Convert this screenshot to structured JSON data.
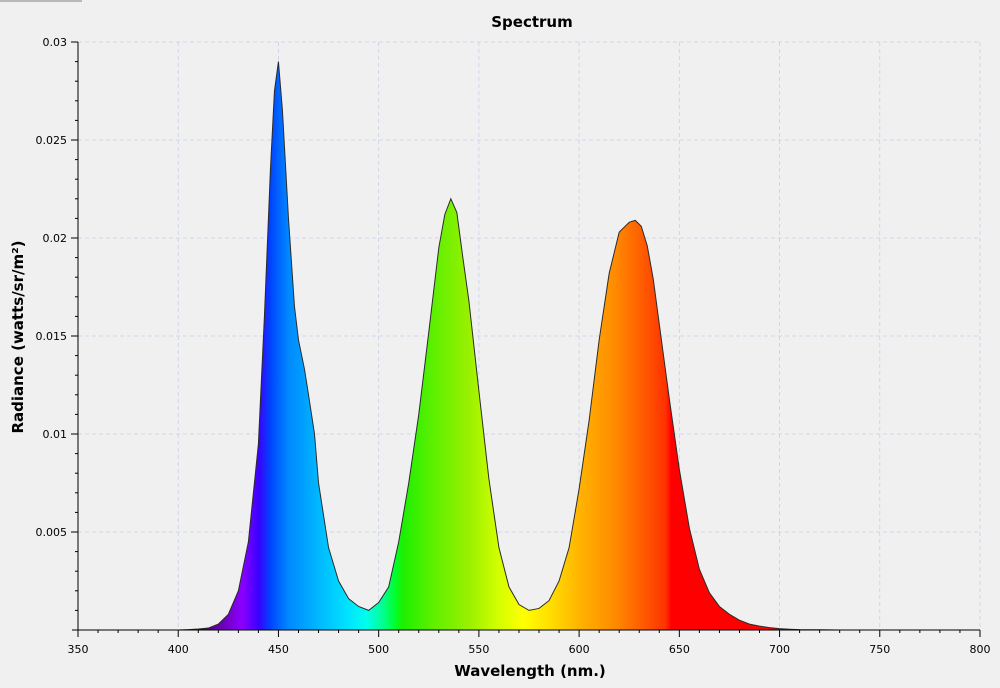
{
  "chart_data": {
    "type": "area",
    "title": "Spectrum",
    "xlabel": "Wavelength (nm.)",
    "ylabel": "Radiance (watts/sr/m²)",
    "xlim": [
      350,
      800
    ],
    "ylim": [
      0,
      0.03
    ],
    "xticks": [
      "350",
      "400",
      "450",
      "500",
      "550",
      "600",
      "650",
      "700",
      "750",
      "800"
    ],
    "yticks": [
      "0.005",
      "0.01",
      "0.015",
      "0.02",
      "0.025",
      "0.03"
    ],
    "grid": true,
    "fill": "visible-spectrum-gradient",
    "series": [
      {
        "x": [
          380,
          390,
          400,
          405,
          410,
          415,
          420,
          425,
          430,
          435,
          440,
          443,
          446,
          448,
          450,
          452,
          455,
          458,
          460,
          463,
          465,
          468,
          470,
          475,
          480,
          485,
          490,
          495,
          500,
          505,
          510,
          515,
          520,
          525,
          530,
          533,
          536,
          539,
          542,
          545,
          550,
          555,
          560,
          565,
          570,
          575,
          580,
          585,
          590,
          595,
          600,
          605,
          610,
          615,
          620,
          625,
          628,
          631,
          634,
          637,
          640,
          645,
          650,
          655,
          660,
          665,
          670,
          675,
          680,
          685,
          690,
          695,
          700,
          705,
          710,
          720,
          730,
          740,
          750,
          760,
          770,
          780
        ],
        "y": [
          0,
          0,
          0,
          2e-05,
          5e-05,
          0.0001,
          0.0003,
          0.0008,
          0.002,
          0.0045,
          0.0095,
          0.016,
          0.0235,
          0.0275,
          0.029,
          0.0265,
          0.021,
          0.0165,
          0.0148,
          0.0133,
          0.012,
          0.01,
          0.0075,
          0.0042,
          0.0025,
          0.0016,
          0.0012,
          0.001,
          0.0014,
          0.0022,
          0.0045,
          0.0075,
          0.011,
          0.0152,
          0.0195,
          0.0212,
          0.022,
          0.0213,
          0.019,
          0.0168,
          0.0122,
          0.0077,
          0.0042,
          0.0022,
          0.0013,
          0.001,
          0.0011,
          0.0015,
          0.0025,
          0.0042,
          0.0072,
          0.0107,
          0.0148,
          0.0182,
          0.0203,
          0.0208,
          0.0209,
          0.0206,
          0.0196,
          0.0179,
          0.0156,
          0.0118,
          0.0082,
          0.0052,
          0.0031,
          0.0019,
          0.0012,
          0.0008,
          0.0005,
          0.0003,
          0.0002,
          0.00012,
          7e-05,
          4e-05,
          2e-05,
          1e-05,
          0,
          0,
          0,
          0,
          0,
          0
        ]
      }
    ]
  }
}
